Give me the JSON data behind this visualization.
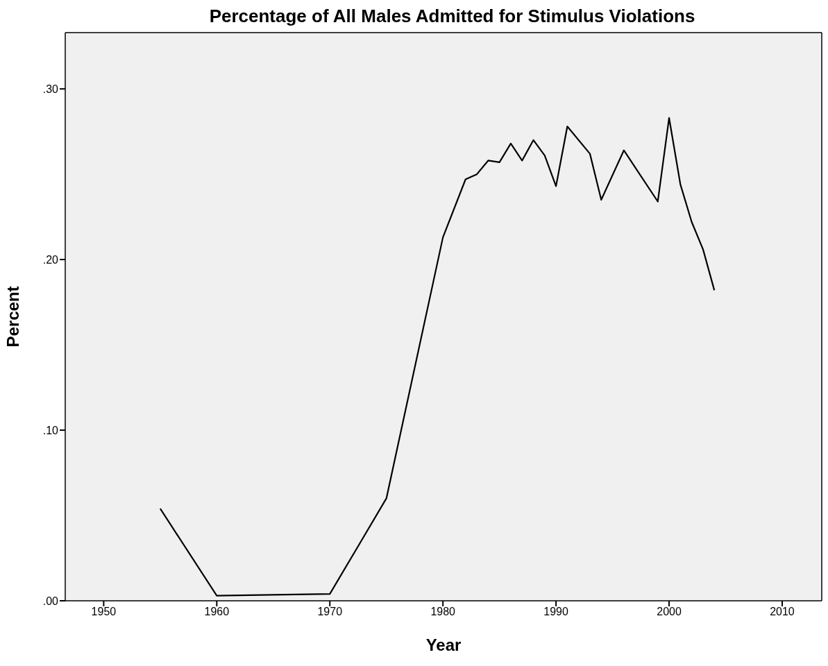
{
  "chart_data": {
    "type": "line",
    "title": "Percentage of All Males Admitted for Stimulus Violations",
    "xlabel": "Year",
    "ylabel": "Percent",
    "x": [
      1955,
      1960,
      1970,
      1975,
      1980,
      1982,
      1983,
      1984,
      1985,
      1986,
      1987,
      1988,
      1989,
      1990,
      1991,
      1993,
      1994,
      1996,
      1999,
      2000,
      2001,
      2002,
      2003,
      2004
    ],
    "series": [
      {
        "color": "#000000",
        "values": [
          0.054,
          0.003,
          0.004,
          0.06,
          0.213,
          0.247,
          0.25,
          0.258,
          0.257,
          0.268,
          0.258,
          0.27,
          0.261,
          0.243,
          0.278,
          0.262,
          0.235,
          0.264,
          0.234,
          0.283,
          0.244,
          0.222,
          0.206,
          0.182
        ]
      }
    ],
    "xlim": [
      1946.6,
      2013.5
    ],
    "xticks": [
      1950,
      1960,
      1970,
      1980,
      1990,
      2000,
      2010
    ],
    "ylim": [
      0,
      0.333
    ],
    "yticks": [
      {
        "value": 0,
        "label": ".00"
      },
      {
        "value": 0.1,
        "label": ".10"
      },
      {
        "value": 0.2,
        "label": ".20"
      },
      {
        "value": 0.3,
        "label": ".30"
      }
    ],
    "grid": false,
    "legend": false,
    "marker": "none",
    "line_style": "solid"
  }
}
